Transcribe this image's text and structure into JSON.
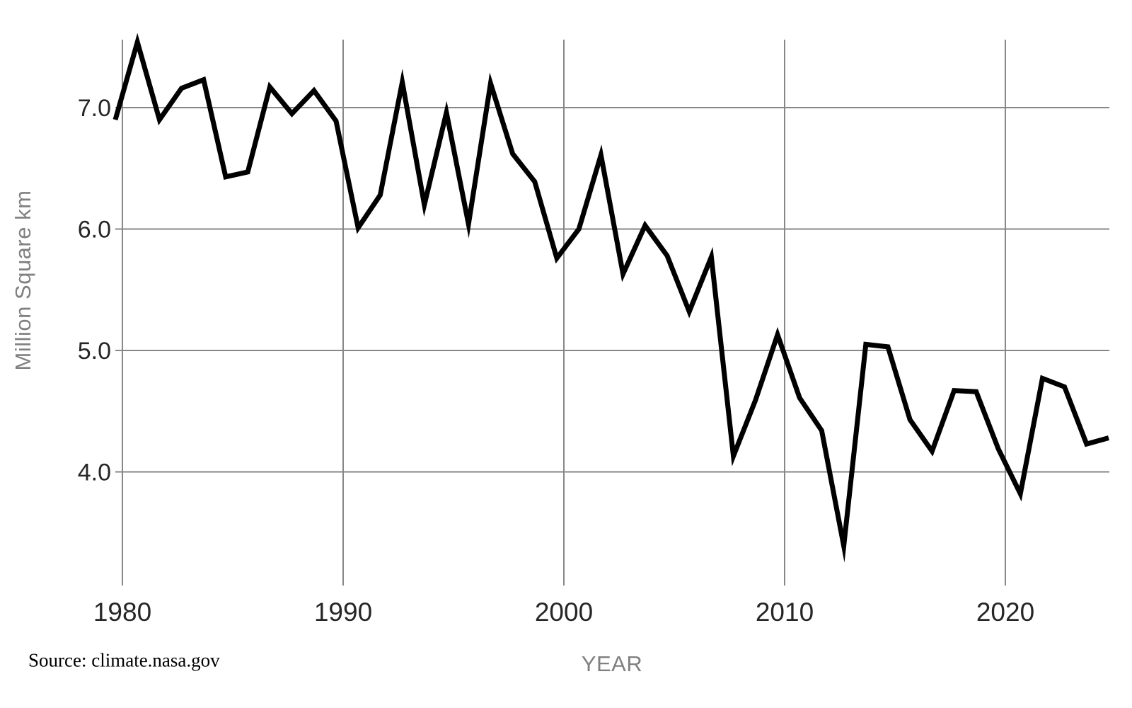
{
  "chart": {
    "y_axis_title": "Million Square km",
    "x_axis_title": "YEAR",
    "source_note": "Source: climate.nasa.gov",
    "y_ticks": [
      {
        "label": "7.0",
        "value": 7.0
      },
      {
        "label": "6.0",
        "value": 6.0
      },
      {
        "label": "5.0",
        "value": 5.0
      },
      {
        "label": "4.0",
        "value": 4.0
      }
    ],
    "x_ticks": [
      {
        "label": "1980",
        "value": 1980
      },
      {
        "label": "1990",
        "value": 1990
      },
      {
        "label": "2000",
        "value": 2000
      },
      {
        "label": "2010",
        "value": 2010
      },
      {
        "label": "2020",
        "value": 2020
      }
    ]
  },
  "chart_data": {
    "type": "line",
    "title": "",
    "xlabel": "YEAR",
    "ylabel": "Million Square km",
    "x": [
      1979,
      1980,
      1981,
      1982,
      1983,
      1984,
      1985,
      1986,
      1987,
      1988,
      1989,
      1990,
      1991,
      1992,
      1993,
      1994,
      1995,
      1996,
      1997,
      1998,
      1999,
      2000,
      2001,
      2002,
      2003,
      2004,
      2005,
      2006,
      2007,
      2008,
      2009,
      2010,
      2011,
      2012,
      2013,
      2014,
      2015,
      2016,
      2017,
      2018,
      2019,
      2020,
      2021,
      2022,
      2023,
      2024
    ],
    "values": [
      6.9,
      7.54,
      6.9,
      7.16,
      7.23,
      6.43,
      6.47,
      7.17,
      6.95,
      7.14,
      6.89,
      6.01,
      6.28,
      7.21,
      6.2,
      6.96,
      6.04,
      7.2,
      6.62,
      6.39,
      5.76,
      6.0,
      6.61,
      5.63,
      6.03,
      5.78,
      5.32,
      5.77,
      4.13,
      4.59,
      5.13,
      4.61,
      4.34,
      3.39,
      5.05,
      5.03,
      4.43,
      4.17,
      4.67,
      4.66,
      4.19,
      3.82,
      4.77,
      4.7,
      4.23,
      4.28
    ],
    "xlim": [
      1978.7,
      2025.1
    ],
    "ylim": [
      3.1,
      7.6
    ],
    "grid": true,
    "legend": false
  },
  "colors": {
    "line": "#000000",
    "grid": "#878787",
    "tick_label": "#262626",
    "axis_title": "#808080",
    "source": "#000000",
    "background": "#ffffff"
  }
}
